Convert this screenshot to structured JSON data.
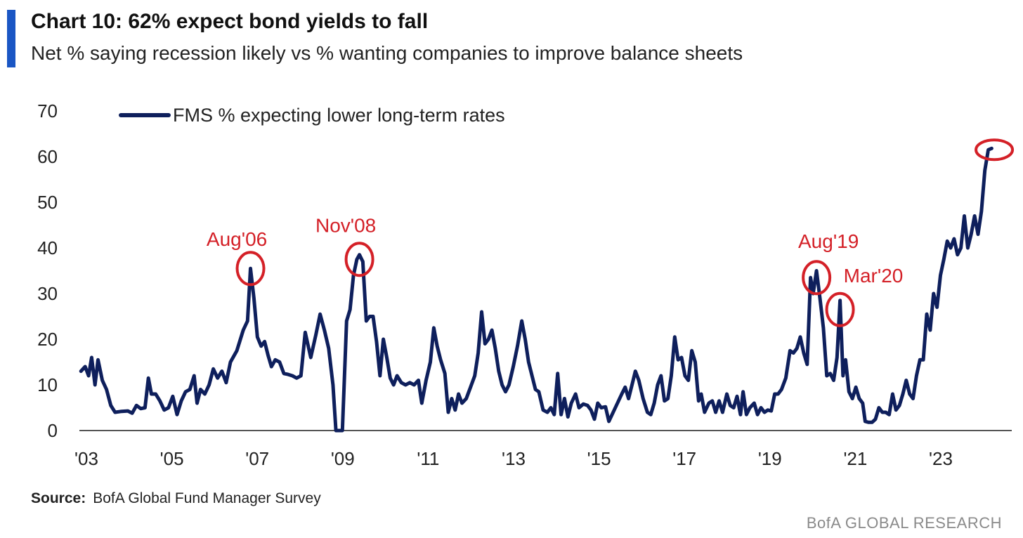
{
  "header": {
    "title": "Chart 10: 62% expect bond yields to fall",
    "subtitle": "Net % saying recession likely vs % wanting companies to improve balance sheets"
  },
  "colors": {
    "accent": "#1a56c4",
    "line": "#0e1f5c",
    "annotation": "#d42027",
    "axis": "#555555"
  },
  "chart_data": {
    "type": "line",
    "ylim": [
      0,
      70
    ],
    "xlim": [
      2003.0,
      2024.9
    ],
    "yticks": [
      0,
      10,
      20,
      30,
      40,
      50,
      60,
      70
    ],
    "xticks": [
      {
        "value": 2003,
        "label": "'03"
      },
      {
        "value": 2005,
        "label": "'05"
      },
      {
        "value": 2007,
        "label": "'07"
      },
      {
        "value": 2009,
        "label": "'09"
      },
      {
        "value": 2011,
        "label": "'11"
      },
      {
        "value": 2013,
        "label": "'13"
      },
      {
        "value": 2015,
        "label": "'15"
      },
      {
        "value": 2017,
        "label": "'17"
      },
      {
        "value": 2019,
        "label": "'19"
      },
      {
        "value": 2021,
        "label": "'21"
      },
      {
        "value": 2023,
        "label": "'23"
      }
    ],
    "legend": "top-left",
    "grid": false,
    "series": [
      {
        "name": "FMS % expecting lower long-term rates",
        "points": [
          [
            2003.2,
            13
          ],
          [
            2003.3,
            14
          ],
          [
            2003.38,
            12
          ],
          [
            2003.45,
            16
          ],
          [
            2003.53,
            10
          ],
          [
            2003.6,
            15.5
          ],
          [
            2003.7,
            11
          ],
          [
            2003.8,
            9
          ],
          [
            2003.9,
            5.5
          ],
          [
            2004.0,
            4
          ],
          [
            2004.15,
            4.2
          ],
          [
            2004.3,
            4.3
          ],
          [
            2004.4,
            3.8
          ],
          [
            2004.5,
            5.5
          ],
          [
            2004.6,
            4.8
          ],
          [
            2004.7,
            5
          ],
          [
            2004.78,
            11.5
          ],
          [
            2004.85,
            8
          ],
          [
            2004.95,
            8
          ],
          [
            2005.05,
            6.5
          ],
          [
            2005.15,
            4.5
          ],
          [
            2005.25,
            5
          ],
          [
            2005.35,
            7.5
          ],
          [
            2005.45,
            3.5
          ],
          [
            2005.55,
            6.5
          ],
          [
            2005.65,
            8.5
          ],
          [
            2005.75,
            9
          ],
          [
            2005.85,
            12
          ],
          [
            2005.92,
            6
          ],
          [
            2006.0,
            9
          ],
          [
            2006.1,
            8
          ],
          [
            2006.2,
            10
          ],
          [
            2006.3,
            13.5
          ],
          [
            2006.4,
            11.5
          ],
          [
            2006.5,
            13
          ],
          [
            2006.6,
            10.5
          ],
          [
            2006.7,
            15
          ],
          [
            2006.85,
            17.5
          ],
          [
            2007.0,
            22
          ],
          [
            2007.1,
            24
          ],
          [
            2007.17,
            35.5
          ],
          [
            2007.25,
            29
          ],
          [
            2007.33,
            20.5
          ],
          [
            2007.42,
            18.5
          ],
          [
            2007.5,
            19.5
          ],
          [
            2007.58,
            16.5
          ],
          [
            2007.66,
            14
          ],
          [
            2007.75,
            15.5
          ],
          [
            2007.85,
            15
          ],
          [
            2007.95,
            12.5
          ],
          [
            2008.05,
            12.3
          ],
          [
            2008.15,
            12
          ],
          [
            2008.25,
            11.5
          ],
          [
            2008.35,
            12
          ],
          [
            2008.45,
            21.5
          ],
          [
            2008.58,
            16
          ],
          [
            2008.7,
            21
          ],
          [
            2008.8,
            25.5
          ],
          [
            2008.9,
            22
          ],
          [
            2009.0,
            18
          ],
          [
            2009.1,
            10
          ],
          [
            2009.17,
            0
          ],
          [
            2009.25,
            0
          ],
          [
            2009.32,
            0
          ],
          [
            2009.42,
            24
          ],
          [
            2009.5,
            26.5
          ],
          [
            2009.58,
            34
          ],
          [
            2009.66,
            37.5
          ],
          [
            2009.72,
            38.5
          ],
          [
            2009.8,
            37
          ],
          [
            2009.88,
            24
          ],
          [
            2009.96,
            25
          ],
          [
            2010.04,
            25
          ],
          [
            2010.12,
            19.5
          ],
          [
            2010.2,
            12
          ],
          [
            2010.28,
            20
          ],
          [
            2010.36,
            16
          ],
          [
            2010.44,
            11.5
          ],
          [
            2010.52,
            10
          ],
          [
            2010.6,
            12
          ],
          [
            2010.7,
            10.5
          ],
          [
            2010.8,
            10
          ],
          [
            2010.9,
            10.5
          ],
          [
            2011.0,
            10
          ],
          [
            2011.1,
            11
          ],
          [
            2011.18,
            6
          ],
          [
            2011.28,
            11
          ],
          [
            2011.38,
            15
          ],
          [
            2011.46,
            22.5
          ],
          [
            2011.54,
            18.5
          ],
          [
            2011.62,
            15.5
          ],
          [
            2011.72,
            12.5
          ],
          [
            2011.8,
            4
          ],
          [
            2011.88,
            7
          ],
          [
            2011.96,
            4.5
          ],
          [
            2012.04,
            8
          ],
          [
            2012.12,
            6
          ],
          [
            2012.22,
            7
          ],
          [
            2012.32,
            9.5
          ],
          [
            2012.42,
            12
          ],
          [
            2012.5,
            17
          ],
          [
            2012.58,
            26
          ],
          [
            2012.66,
            19
          ],
          [
            2012.74,
            20
          ],
          [
            2012.82,
            22
          ],
          [
            2012.9,
            18
          ],
          [
            2012.98,
            13
          ],
          [
            2013.06,
            10
          ],
          [
            2013.14,
            8.5
          ],
          [
            2013.22,
            10
          ],
          [
            2013.32,
            14
          ],
          [
            2013.42,
            18.5
          ],
          [
            2013.52,
            24
          ],
          [
            2013.6,
            20
          ],
          [
            2013.68,
            15
          ],
          [
            2013.76,
            12
          ],
          [
            2013.84,
            9
          ],
          [
            2013.92,
            8.5
          ],
          [
            2014.02,
            4.5
          ],
          [
            2014.12,
            4
          ],
          [
            2014.2,
            5
          ],
          [
            2014.28,
            3.5
          ],
          [
            2014.36,
            12.5
          ],
          [
            2014.44,
            3.5
          ],
          [
            2014.52,
            7
          ],
          [
            2014.6,
            3
          ],
          [
            2014.68,
            6
          ],
          [
            2014.78,
            8
          ],
          [
            2014.86,
            5
          ],
          [
            2014.96,
            5.8
          ],
          [
            2015.06,
            5.5
          ],
          [
            2015.14,
            4.5
          ],
          [
            2015.22,
            2.5
          ],
          [
            2015.3,
            6
          ],
          [
            2015.38,
            5
          ],
          [
            2015.48,
            5.2
          ],
          [
            2015.56,
            2
          ],
          [
            2015.66,
            4
          ],
          [
            2015.76,
            6
          ],
          [
            2015.86,
            8
          ],
          [
            2015.94,
            9.5
          ],
          [
            2016.02,
            7
          ],
          [
            2016.1,
            10
          ],
          [
            2016.18,
            13
          ],
          [
            2016.26,
            11
          ],
          [
            2016.36,
            7
          ],
          [
            2016.46,
            4
          ],
          [
            2016.54,
            3.5
          ],
          [
            2016.62,
            6
          ],
          [
            2016.7,
            10
          ],
          [
            2016.78,
            12
          ],
          [
            2016.86,
            6.5
          ],
          [
            2016.94,
            7
          ],
          [
            2017.02,
            12
          ],
          [
            2017.1,
            20.5
          ],
          [
            2017.18,
            15.5
          ],
          [
            2017.26,
            16
          ],
          [
            2017.34,
            12
          ],
          [
            2017.42,
            11
          ],
          [
            2017.5,
            17.5
          ],
          [
            2017.58,
            15
          ],
          [
            2017.66,
            6.5
          ],
          [
            2017.72,
            8
          ],
          [
            2017.8,
            4
          ],
          [
            2017.9,
            6
          ],
          [
            2017.98,
            6.5
          ],
          [
            2018.06,
            4
          ],
          [
            2018.14,
            6.5
          ],
          [
            2018.22,
            4
          ],
          [
            2018.32,
            8
          ],
          [
            2018.4,
            5.5
          ],
          [
            2018.48,
            5
          ],
          [
            2018.56,
            7.5
          ],
          [
            2018.64,
            3.5
          ],
          [
            2018.7,
            8.5
          ],
          [
            2018.78,
            3.5
          ],
          [
            2018.86,
            5
          ],
          [
            2018.96,
            6
          ],
          [
            2019.04,
            3.5
          ],
          [
            2019.12,
            5
          ],
          [
            2019.2,
            4
          ],
          [
            2019.28,
            4.5
          ],
          [
            2019.36,
            4.3
          ],
          [
            2019.44,
            8
          ],
          [
            2019.52,
            8
          ],
          [
            2019.6,
            9
          ],
          [
            2019.7,
            11.5
          ],
          [
            2019.8,
            17.5
          ],
          [
            2019.88,
            17
          ],
          [
            2019.96,
            18
          ],
          [
            2020.04,
            20.5
          ],
          [
            2020.12,
            17
          ],
          [
            2020.2,
            14.5
          ],
          [
            2020.28,
            33.5
          ],
          [
            2020.34,
            30
          ],
          [
            2020.42,
            35
          ],
          [
            2020.5,
            29
          ],
          [
            2020.58,
            22.5
          ],
          [
            2020.66,
            12
          ],
          [
            2020.74,
            12.5
          ],
          [
            2020.82,
            11
          ],
          [
            2020.9,
            16
          ],
          [
            2020.97,
            28.5
          ],
          [
            2021.04,
            12
          ],
          [
            2021.1,
            15.5
          ],
          [
            2021.18,
            8.5
          ],
          [
            2021.26,
            7
          ],
          [
            2021.34,
            9.5
          ],
          [
            2021.42,
            7
          ],
          [
            2021.5,
            6
          ],
          [
            2021.56,
            2
          ],
          [
            2021.64,
            1.8
          ],
          [
            2021.72,
            1.8
          ],
          [
            2021.8,
            2.5
          ],
          [
            2021.88,
            5
          ],
          [
            2021.96,
            4
          ],
          [
            2022.04,
            4
          ],
          [
            2022.12,
            3.5
          ],
          [
            2022.2,
            8
          ],
          [
            2022.28,
            4.5
          ],
          [
            2022.36,
            5.5
          ],
          [
            2022.44,
            8
          ],
          [
            2022.52,
            11
          ],
          [
            2022.6,
            8
          ],
          [
            2022.68,
            7
          ],
          [
            2022.76,
            12
          ],
          [
            2022.84,
            15.5
          ],
          [
            2022.92,
            15.5
          ],
          [
            2023.0,
            25.5
          ],
          [
            2023.08,
            22
          ],
          [
            2023.16,
            30
          ],
          [
            2023.24,
            27
          ],
          [
            2023.32,
            34
          ],
          [
            2023.4,
            37.5
          ],
          [
            2023.48,
            41.5
          ],
          [
            2023.56,
            40
          ],
          [
            2023.64,
            42
          ],
          [
            2023.72,
            38.5
          ],
          [
            2023.8,
            40
          ],
          [
            2023.88,
            47
          ],
          [
            2023.96,
            40
          ],
          [
            2024.04,
            43
          ],
          [
            2024.12,
            47
          ],
          [
            2024.2,
            43
          ],
          [
            2024.28,
            48
          ],
          [
            2024.36,
            57
          ],
          [
            2024.44,
            61.5
          ],
          [
            2024.52,
            61.8
          ]
        ]
      }
    ],
    "annotations": [
      {
        "label": "Aug'06",
        "x": 2007.17,
        "y": 35.5,
        "label_x": 2006.85,
        "label_y": 40.5
      },
      {
        "label": "Nov'08",
        "x": 2009.72,
        "y": 37.5,
        "label_x": 2009.4,
        "label_y": 43.5
      },
      {
        "label": "Aug'19",
        "x": 2020.42,
        "y": 33.5,
        "label_x": 2020.7,
        "label_y": 40.0
      },
      {
        "label": "Mar'20",
        "x": 2020.97,
        "y": 26.5,
        "label_x": 2021.75,
        "label_y": 32.5
      },
      {
        "label": "",
        "x": 2024.58,
        "y": 61.5
      }
    ]
  },
  "footer": {
    "source_label": "Source:",
    "source_text": "BofA Global Fund Manager Survey",
    "brand": "BofA GLOBAL RESEARCH"
  }
}
